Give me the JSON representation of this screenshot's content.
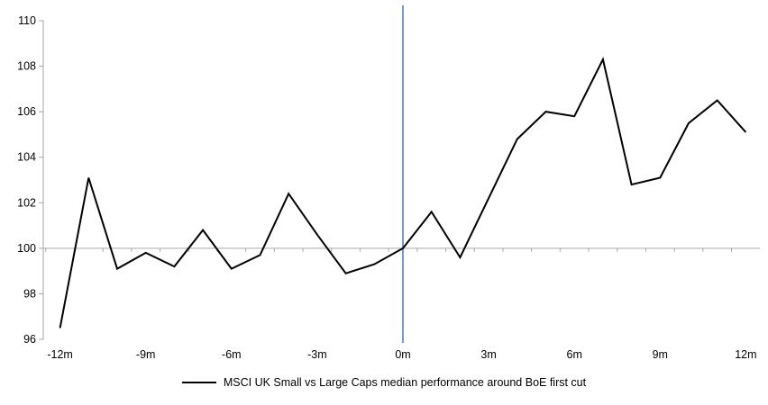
{
  "legend": {
    "label": "MSCI UK Small vs Large Caps median performance around BoE first cut"
  },
  "chart_data": {
    "type": "line",
    "x": [
      -12,
      -11,
      -10,
      -9,
      -8,
      -7,
      -6,
      -5,
      -4,
      -3,
      -2,
      -1,
      0,
      1,
      2,
      3,
      4,
      5,
      6,
      7,
      8,
      9,
      10,
      11,
      12
    ],
    "series": [
      {
        "name": "MSCI UK Small vs Large Caps median performance around BoE first cut",
        "color": "#000000",
        "values": [
          96.5,
          103.1,
          99.1,
          99.8,
          99.2,
          100.8,
          99.1,
          99.7,
          102.4,
          100.6,
          98.9,
          99.3,
          100.0,
          101.6,
          99.6,
          102.2,
          104.8,
          106.0,
          105.8,
          108.3,
          102.8,
          103.1,
          105.5,
          106.5,
          105.1
        ]
      }
    ],
    "title": "",
    "xlabel": "",
    "ylabel": "",
    "ylim": [
      96,
      110
    ],
    "y_ticks": [
      96,
      98,
      100,
      102,
      104,
      106,
      108,
      110
    ],
    "x_tick_positions": [
      -12,
      -9,
      -6,
      -3,
      0,
      3,
      6,
      9,
      12
    ],
    "x_tick_labels": [
      "-12m",
      "-9m",
      "-6m",
      "-3m",
      "0m",
      "3m",
      "6m",
      "9m",
      "12m"
    ],
    "baseline_value": 100,
    "event_line_x": 0,
    "grid": "baseline-only",
    "legend_position": "bottom",
    "colors": {
      "series": "#000000",
      "axis": "#a6a6a6",
      "baseline": "#a6a6a6",
      "event_line": "#4f81bd",
      "text": "#000000"
    }
  }
}
